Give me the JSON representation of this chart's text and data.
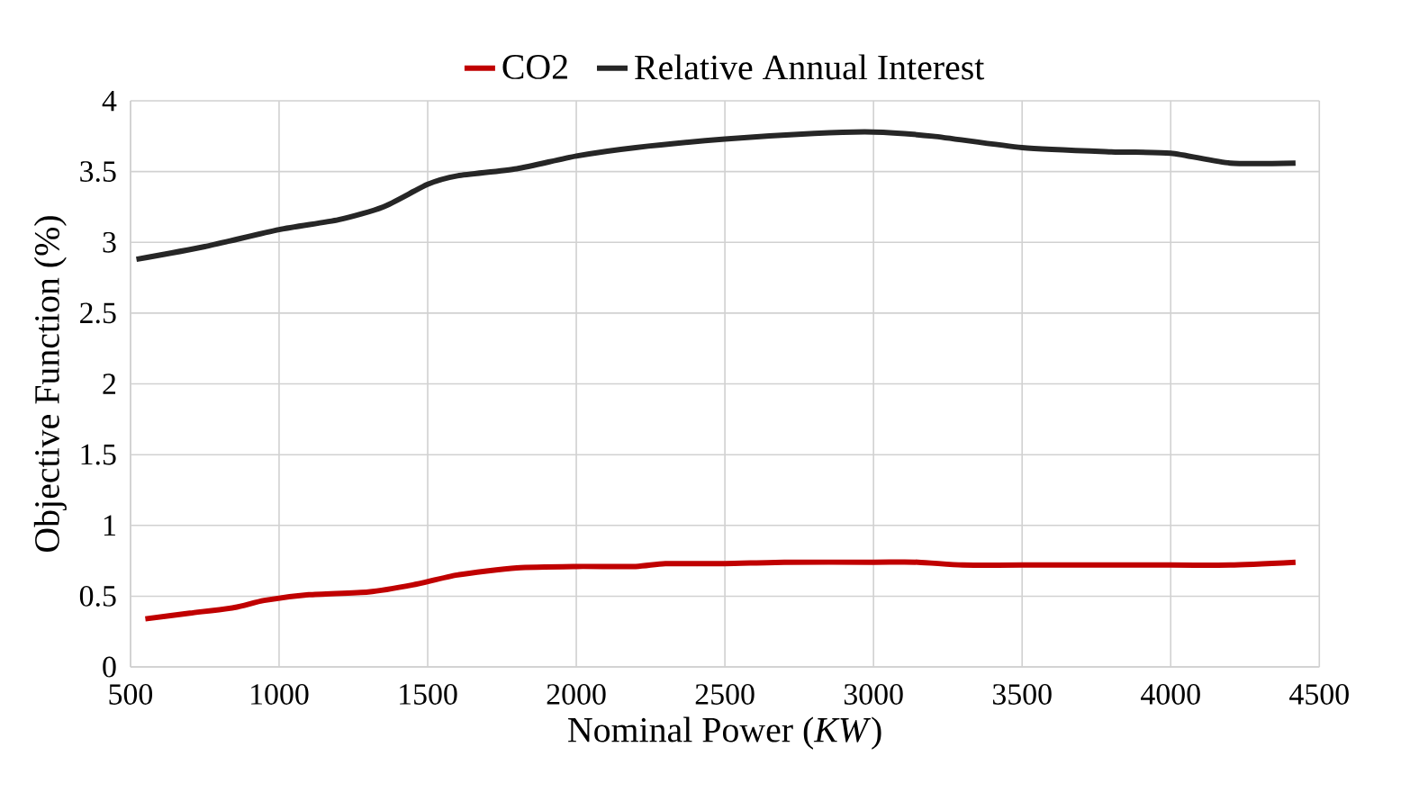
{
  "chart_data": {
    "type": "line",
    "xlabel": "Nominal Power (*KW*)",
    "ylabel": "Objective Function (%)",
    "xlim": [
      500,
      4500
    ],
    "xticks": [
      500,
      1000,
      1500,
      2000,
      2500,
      3000,
      3500,
      4000,
      4500
    ],
    "ylim": [
      0,
      4
    ],
    "yticks": [
      0,
      0.5,
      1,
      1.5,
      2,
      2.5,
      3,
      3.5,
      4
    ],
    "grid": true,
    "legend": "top",
    "series": [
      {
        "name": "CO2",
        "color": "#c00000",
        "x": [
          550,
          700,
          850,
          950,
          1100,
          1300,
          1450,
          1600,
          1800,
          2000,
          2200,
          2300,
          2500,
          2700,
          3000,
          3150,
          3300,
          3500,
          4000,
          4200,
          4420
        ],
        "values": [
          0.34,
          0.38,
          0.42,
          0.47,
          0.51,
          0.53,
          0.58,
          0.65,
          0.7,
          0.71,
          0.71,
          0.73,
          0.73,
          0.74,
          0.74,
          0.74,
          0.72,
          0.72,
          0.72,
          0.72,
          0.74
        ]
      },
      {
        "name": "Relative Annual Interest",
        "color": "#262626",
        "x": [
          520,
          750,
          1000,
          1200,
          1350,
          1500,
          1600,
          1800,
          2000,
          2200,
          2500,
          2800,
          3000,
          3200,
          3500,
          3800,
          4000,
          4200,
          4420
        ],
        "values": [
          2.88,
          2.97,
          3.09,
          3.16,
          3.25,
          3.41,
          3.47,
          3.52,
          3.61,
          3.67,
          3.73,
          3.77,
          3.78,
          3.75,
          3.67,
          3.64,
          3.63,
          3.56,
          3.56
        ]
      }
    ]
  }
}
